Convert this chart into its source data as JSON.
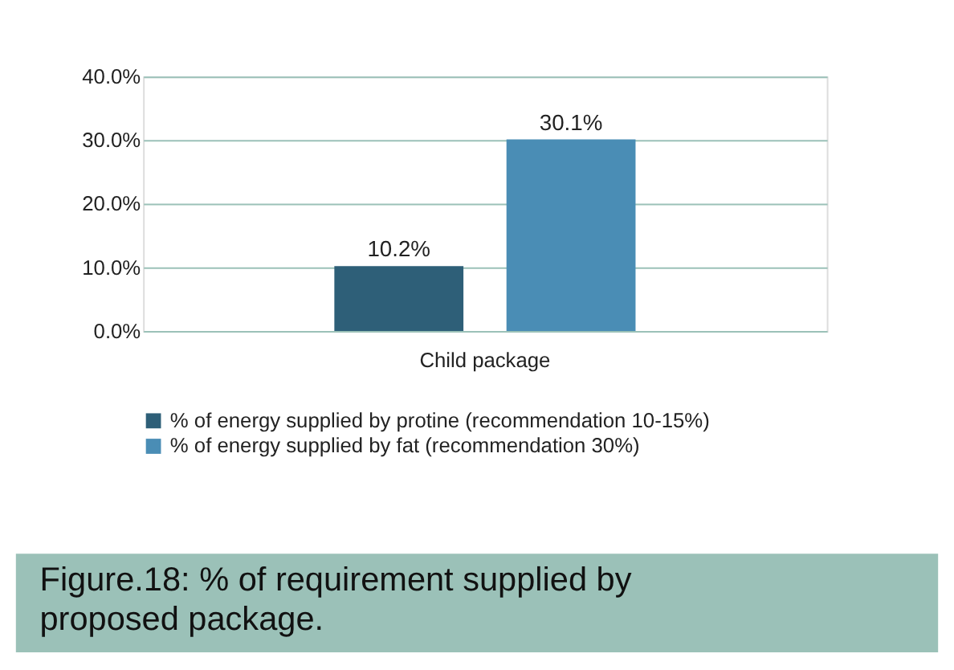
{
  "chart_data": {
    "type": "bar",
    "categories": [
      "Child package"
    ],
    "series": [
      {
        "name": "% of energy supplied by protine (recommendation 10-15%)",
        "color": "#2e5f78",
        "values": [
          10.2
        ],
        "value_labels": [
          "10.2%"
        ]
      },
      {
        "name": "% of energy supplied by fat (recommendation 30%)",
        "color": "#4a8db5",
        "values": [
          30.1
        ],
        "value_labels": [
          "30.1%"
        ]
      }
    ],
    "ylim": [
      0,
      40
    ],
    "yticks": [
      {
        "value": 0,
        "label": "0.0%"
      },
      {
        "value": 10,
        "label": "10.0%"
      },
      {
        "value": 20,
        "label": "20.0%"
      },
      {
        "value": 30,
        "label": "30.0%"
      },
      {
        "value": 40,
        "label": "40.0%"
      }
    ],
    "grid": "y",
    "legend": "bottom",
    "annotations": [
      "Figure.18: % of requirement supplied by proposed package."
    ]
  }
}
